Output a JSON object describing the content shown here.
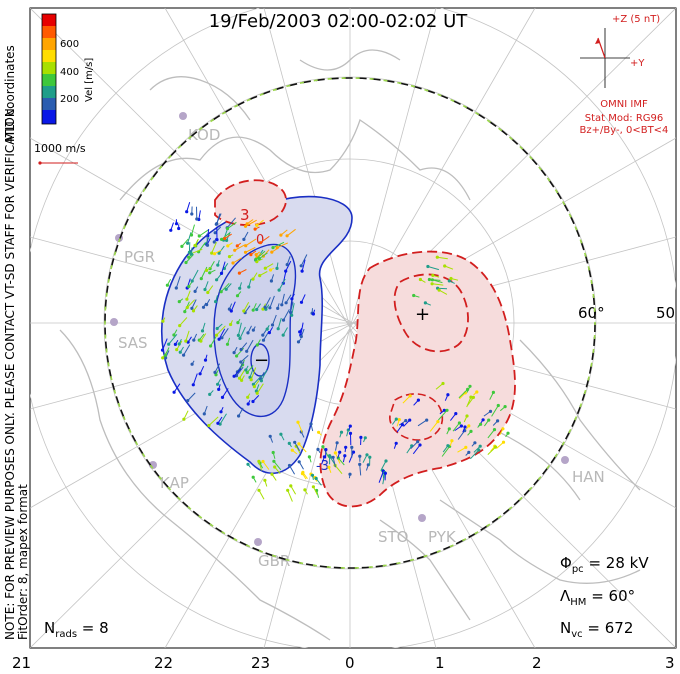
{
  "title": "19/Feb/2003 02:00-02:02 UT",
  "colorbar": {
    "label": "Vel [m/s]",
    "ticks": [
      "600",
      "400",
      "200"
    ],
    "colors": [
      "#e60000",
      "#ff5a00",
      "#ffa500",
      "#ffdd00",
      "#a8e000",
      "#3ec83c",
      "#1f9e8a",
      "#2b5db0",
      "#0a18e6"
    ]
  },
  "side_notes": {
    "coords": "MLT coordinates",
    "notice": "NOTE: FOR PREVIEW PURPOSES ONLY. PLEASE CONTACT VT-SD STAFF FOR VERIFICATION.",
    "fit": "FitOrder: 8, mapex format"
  },
  "scale_label": "1000 m/s",
  "imf": {
    "z_label": "+Z (5 nT)",
    "y_label": "+Y",
    "source": "OMNI IMF",
    "stat_mod": "Stat Mod: RG96",
    "condition": "Bz+/By-, 0<BT<4"
  },
  "stations": [
    "KOD",
    "PGR",
    "SAS",
    "KAP",
    "GBR",
    "STO",
    "PYK",
    "HAN"
  ],
  "latitude_labels": [
    "60°",
    "50°"
  ],
  "contour_labels": [
    "3",
    "0",
    "-3"
  ],
  "potential_symbols": {
    "max": "+",
    "min": "−"
  },
  "stats": {
    "phi_pc": "Φ",
    "phi_sub": "pc",
    "phi_val": " = 28 kV",
    "lambda": "Λ",
    "lambda_sub": "HM",
    "lambda_val": " = 60°",
    "nvc": "N",
    "nvc_sub": "vc",
    "nvc_val": " = 672",
    "nrads": "N",
    "nrads_sub": "rads",
    "nrads_val": " = 8"
  },
  "mlt_axis": [
    "21",
    "22",
    "23",
    "0",
    "1",
    "2",
    "3"
  ]
}
